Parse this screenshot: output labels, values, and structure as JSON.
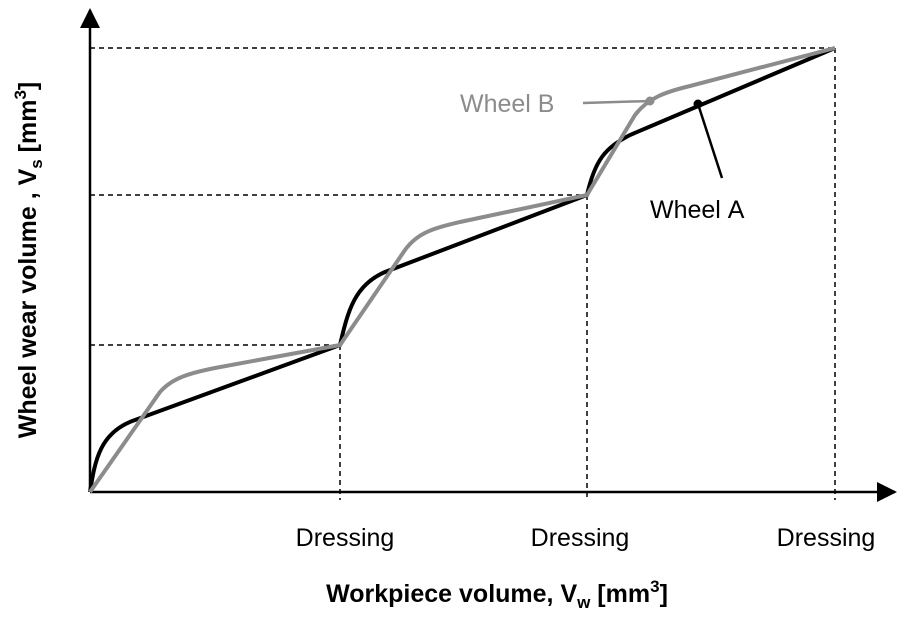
{
  "x_axis_label": {
    "text": "Workpiece volume, V",
    "sub": "w",
    "unit": " [mm",
    "sup": "3",
    "close": "]"
  },
  "y_axis_label": {
    "text": "Wheel wear volume , V",
    "sub": "s",
    "unit": " [mm",
    "sup": "3",
    "close": "]"
  },
  "x_tick_labels": [
    "Dressing",
    "Dressing",
    "Dressing"
  ],
  "legend": {
    "wheel_b": "Wheel B",
    "wheel_a": "Wheel A"
  }
}
